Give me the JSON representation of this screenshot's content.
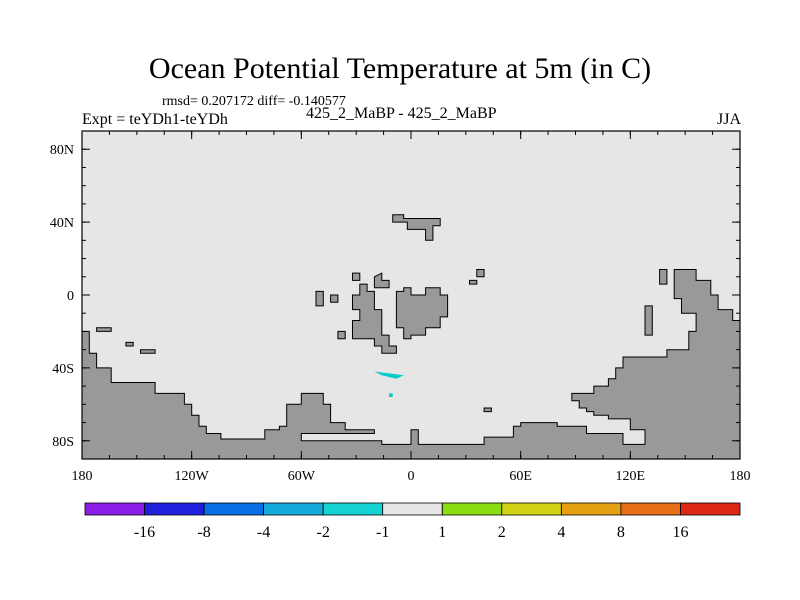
{
  "title": "Ocean Potential Temperature at 5m (in C)",
  "stats_line": "rmsd= 0.207172 diff= -0.140577",
  "expt_label": "Expt = teYDh1-teYDh",
  "center_label": "425_2_MaBP - 425_2_MaBP",
  "season_label": "JJA",
  "chart_data": {
    "type": "heatmap",
    "title": "Ocean Potential Temperature at 5m (in C)",
    "x_ticks": [
      {
        "value": -180,
        "label": "180"
      },
      {
        "value": -120,
        "label": "120W"
      },
      {
        "value": -60,
        "label": "60W"
      },
      {
        "value": 0,
        "label": "0"
      },
      {
        "value": 60,
        "label": "60E"
      },
      {
        "value": 120,
        "label": "120E"
      },
      {
        "value": 180,
        "label": "180"
      }
    ],
    "y_ticks": [
      {
        "value": 80,
        "label": "80N"
      },
      {
        "value": 40,
        "label": "40N"
      },
      {
        "value": 0,
        "label": "0"
      },
      {
        "value": -40,
        "label": "40S"
      },
      {
        "value": -80,
        "label": "80S"
      }
    ],
    "xlim": [
      -180,
      180
    ],
    "ylim": [
      -90,
      90
    ],
    "ocean_color": "#e6e6e6",
    "land_color": "#999999",
    "land_masses": [
      [
        [
          -180,
          -90
        ],
        [
          -180,
          -20
        ],
        [
          -176,
          -20
        ],
        [
          -176,
          -32
        ],
        [
          -172,
          -32
        ],
        [
          -172,
          -40
        ],
        [
          -164,
          -40
        ],
        [
          -164,
          -48
        ],
        [
          -140,
          -48
        ],
        [
          -140,
          -54
        ],
        [
          -124,
          -54
        ],
        [
          -124,
          -60
        ],
        [
          -120,
          -60
        ],
        [
          -120,
          -66
        ],
        [
          -116,
          -66
        ],
        [
          -116,
          -72
        ],
        [
          -112,
          -72
        ],
        [
          -112,
          -76
        ],
        [
          -104,
          -76
        ],
        [
          -104,
          -79
        ],
        [
          -80,
          -79
        ],
        [
          -80,
          -74
        ],
        [
          -72,
          -74
        ],
        [
          -72,
          -72
        ],
        [
          -68,
          -72
        ],
        [
          -68,
          -60
        ],
        [
          -60,
          -60
        ],
        [
          -60,
          -54
        ],
        [
          -48,
          -54
        ],
        [
          -48,
          -60
        ],
        [
          -44,
          -60
        ],
        [
          -44,
          -70
        ],
        [
          -36,
          -70
        ],
        [
          -36,
          -74
        ],
        [
          -20,
          -74
        ],
        [
          -20,
          -76
        ],
        [
          -60,
          -76
        ],
        [
          -60,
          -80
        ],
        [
          -16,
          -80
        ],
        [
          -16,
          -82
        ],
        [
          0,
          -82
        ],
        [
          0,
          -74
        ],
        [
          4,
          -74
        ],
        [
          4,
          -82
        ],
        [
          40,
          -82
        ],
        [
          40,
          -78
        ],
        [
          56,
          -78
        ],
        [
          56,
          -72
        ],
        [
          60,
          -72
        ],
        [
          60,
          -70
        ],
        [
          80,
          -70
        ],
        [
          80,
          -72
        ],
        [
          96,
          -72
        ],
        [
          96,
          -76
        ],
        [
          116,
          -76
        ],
        [
          116,
          -82
        ],
        [
          128,
          -82
        ],
        [
          128,
          -74
        ],
        [
          120,
          -74
        ],
        [
          120,
          -68
        ],
        [
          108,
          -68
        ],
        [
          108,
          -66
        ],
        [
          100,
          -66
        ],
        [
          100,
          -64
        ],
        [
          96,
          -64
        ],
        [
          96,
          -62
        ],
        [
          92,
          -62
        ],
        [
          92,
          -58
        ],
        [
          88,
          -58
        ],
        [
          88,
          -54
        ],
        [
          100,
          -54
        ],
        [
          100,
          -50
        ],
        [
          108,
          -50
        ],
        [
          108,
          -46
        ],
        [
          112,
          -46
        ],
        [
          112,
          -40
        ],
        [
          116,
          -40
        ],
        [
          116,
          -34
        ],
        [
          140,
          -34
        ],
        [
          140,
          -30
        ],
        [
          152,
          -30
        ],
        [
          152,
          -20
        ],
        [
          156,
          -20
        ],
        [
          156,
          -10
        ],
        [
          148,
          -10
        ],
        [
          148,
          -2
        ],
        [
          144,
          -2
        ],
        [
          144,
          14
        ],
        [
          156,
          14
        ],
        [
          156,
          8
        ],
        [
          164,
          8
        ],
        [
          164,
          0
        ],
        [
          168,
          0
        ],
        [
          168,
          -8
        ],
        [
          176,
          -8
        ],
        [
          176,
          -14
        ],
        [
          180,
          -14
        ],
        [
          180,
          -90
        ]
      ],
      [
        [
          -10,
          43
        ],
        [
          -10,
          40
        ],
        [
          -2,
          40
        ],
        [
          -2,
          36
        ],
        [
          8,
          36
        ],
        [
          8,
          30
        ],
        [
          12,
          30
        ],
        [
          12,
          38
        ],
        [
          16,
          38
        ],
        [
          16,
          42
        ],
        [
          -4,
          42
        ],
        [
          -4,
          44
        ],
        [
          -10,
          44
        ]
      ],
      [
        [
          -24,
          6
        ],
        [
          -24,
          2
        ],
        [
          -20,
          2
        ],
        [
          -20,
          -8
        ],
        [
          -16,
          -8
        ],
        [
          -16,
          -22
        ],
        [
          -12,
          -22
        ],
        [
          -12,
          -28
        ],
        [
          -8,
          -28
        ],
        [
          -8,
          -32
        ],
        [
          -16,
          -32
        ],
        [
          -16,
          -28
        ],
        [
          -20,
          -28
        ],
        [
          -20,
          -24
        ],
        [
          -32,
          -24
        ],
        [
          -32,
          -20
        ],
        [
          -32,
          -14
        ],
        [
          -28,
          -14
        ],
        [
          -28,
          -8
        ],
        [
          -32,
          -8
        ],
        [
          -32,
          0
        ],
        [
          -28,
          0
        ],
        [
          -28,
          6
        ],
        [
          -24,
          6
        ]
      ],
      [
        [
          -8,
          2
        ],
        [
          -4,
          2
        ],
        [
          -4,
          4
        ],
        [
          0,
          4
        ],
        [
          0,
          0
        ],
        [
          8,
          0
        ],
        [
          8,
          4
        ],
        [
          16,
          4
        ],
        [
          16,
          0
        ],
        [
          20,
          0
        ],
        [
          20,
          -12
        ],
        [
          16,
          -12
        ],
        [
          16,
          -18
        ],
        [
          8,
          -18
        ],
        [
          8,
          -22
        ],
        [
          0,
          -22
        ],
        [
          0,
          -24
        ],
        [
          -4,
          -24
        ],
        [
          -4,
          -18
        ],
        [
          -8,
          -18
        ],
        [
          -8,
          2
        ]
      ],
      [
        [
          -44,
          -4
        ],
        [
          -44,
          0
        ],
        [
          -40,
          0
        ],
        [
          -40,
          -4
        ],
        [
          -44,
          -4
        ]
      ],
      [
        [
          -32,
          12
        ],
        [
          -32,
          8
        ],
        [
          -28,
          8
        ],
        [
          -28,
          12
        ],
        [
          -32,
          12
        ]
      ],
      [
        [
          -16,
          12
        ],
        [
          -16,
          8
        ],
        [
          -12,
          8
        ],
        [
          -12,
          4
        ],
        [
          -20,
          4
        ],
        [
          -20,
          10
        ],
        [
          -16,
          12
        ]
      ],
      [
        [
          -52,
          -6
        ],
        [
          -48,
          -6
        ],
        [
          -48,
          2
        ],
        [
          -52,
          2
        ],
        [
          -52,
          -6
        ]
      ],
      [
        [
          -40,
          -24
        ],
        [
          -40,
          -20
        ],
        [
          -36,
          -20
        ],
        [
          -36,
          -24
        ],
        [
          -40,
          -24
        ]
      ],
      [
        [
          136,
          14
        ],
        [
          136,
          6
        ],
        [
          140,
          6
        ],
        [
          140,
          14
        ]
      ],
      [
        [
          132,
          -6
        ],
        [
          128,
          -6
        ],
        [
          128,
          -22
        ],
        [
          132,
          -22
        ],
        [
          132,
          -6
        ]
      ],
      [
        [
          -172,
          -18
        ],
        [
          -172,
          -20
        ],
        [
          -164,
          -20
        ],
        [
          -164,
          -18
        ]
      ],
      [
        [
          -156,
          -26
        ],
        [
          -156,
          -28
        ],
        [
          -152,
          -28
        ],
        [
          -152,
          -26
        ]
      ],
      [
        [
          -148,
          -30
        ],
        [
          -148,
          -32
        ],
        [
          -140,
          -32
        ],
        [
          -140,
          -30
        ]
      ],
      [
        [
          36,
          14
        ],
        [
          36,
          10
        ],
        [
          40,
          10
        ],
        [
          40,
          14
        ]
      ],
      [
        [
          32,
          8
        ],
        [
          32,
          6
        ],
        [
          36,
          6
        ],
        [
          36,
          8
        ]
      ],
      [
        [
          40,
          -62
        ],
        [
          40,
          -64
        ],
        [
          44,
          -64
        ],
        [
          44,
          -62
        ]
      ]
    ],
    "anomaly_patches": [
      {
        "color": "#00cccc",
        "points": [
          [
            -20,
            -42
          ],
          [
            -4,
            -44
          ],
          [
            -8,
            -46
          ],
          [
            -16,
            -44
          ]
        ]
      },
      {
        "color": "#00cccc",
        "points": [
          [
            -12,
            -54
          ],
          [
            -10,
            -54
          ],
          [
            -10,
            -56
          ],
          [
            -12,
            -56
          ]
        ]
      }
    ],
    "colorbar": {
      "colors": [
        "#8a1ee6",
        "#2020dc",
        "#0a6ee6",
        "#14aadc",
        "#14d2d2",
        "#e6e6e6",
        "#8cdc14",
        "#d2d214",
        "#e6a014",
        "#e66e14",
        "#dc2814"
      ],
      "labels": [
        "-16",
        "-8",
        "-4",
        "-2",
        "-1",
        "1",
        "2",
        "4",
        "8",
        "16"
      ]
    }
  }
}
